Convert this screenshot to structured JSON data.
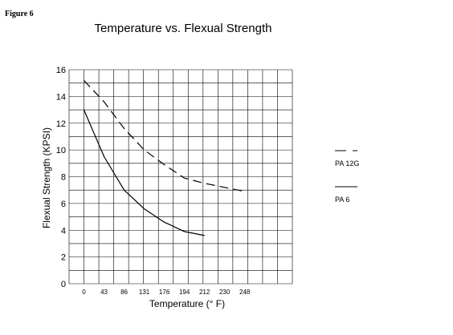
{
  "figure_label": "Figure 6",
  "chart_data": {
    "type": "line",
    "title": "Temperature vs. Flexual Strength",
    "xlabel": "Temperature (° F)",
    "ylabel": "Flexual Strength (KPSI)",
    "ylim": [
      0,
      16
    ],
    "yticks": [
      "0",
      "2",
      "4",
      "6",
      "8",
      "10",
      "12",
      "14",
      "16"
    ],
    "xticks": [
      "0",
      "43",
      "86",
      "131",
      "176",
      "194",
      "212",
      "230",
      "248"
    ],
    "grid": true,
    "legend_position": "right",
    "series": [
      {
        "name": "PA 12G",
        "style": "dashed",
        "points": [
          [
            0,
            15.2
          ],
          [
            1,
            13.6
          ],
          [
            2,
            11.6
          ],
          [
            3,
            10.0
          ],
          [
            4,
            8.9
          ],
          [
            5,
            7.9
          ],
          [
            6,
            7.5
          ],
          [
            7,
            7.2
          ],
          [
            8,
            6.9
          ]
        ]
      },
      {
        "name": "PA 6",
        "style": "solid",
        "points": [
          [
            0,
            13.0
          ],
          [
            1,
            9.5
          ],
          [
            2,
            7.0
          ],
          [
            3,
            5.6
          ],
          [
            4,
            4.6
          ],
          [
            5,
            3.9
          ],
          [
            6,
            3.6
          ]
        ]
      }
    ]
  }
}
